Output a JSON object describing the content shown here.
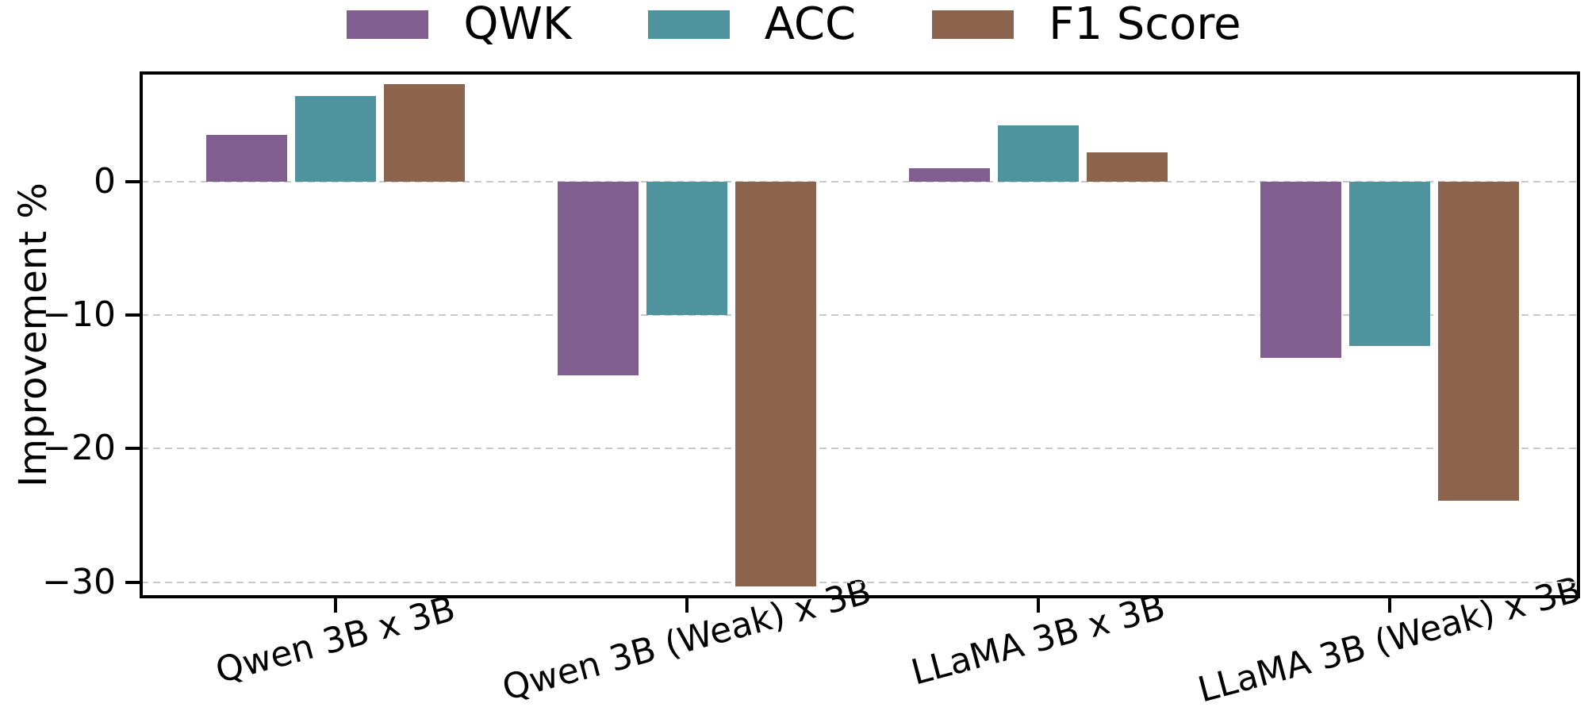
{
  "chart_data": {
    "type": "bar",
    "title": "",
    "xlabel": "",
    "ylabel": "Improvement %",
    "categories": [
      "Qwen 3B x 3B",
      "Qwen 3B (Weak) x 3B",
      "LLaMA 3B x 3B",
      "LLaMA 3B (Weak) x 3B"
    ],
    "series": [
      {
        "name": "QWK",
        "color": "#805f90",
        "values": [
          3.5,
          -14.5,
          1.0,
          -13.2
        ]
      },
      {
        "name": "ACC",
        "color": "#4f939e",
        "values": [
          6.4,
          -10.0,
          4.2,
          -12.3
        ]
      },
      {
        "name": "F1 Score",
        "color": "#8c634c",
        "values": [
          7.3,
          -30.3,
          2.2,
          -23.9
        ]
      }
    ],
    "yticks": [
      0,
      -10,
      -20,
      -30
    ],
    "ytick_labels": [
      "0",
      "−10",
      "−20",
      "−30"
    ],
    "ylim": [
      -31.1,
      8.15
    ],
    "grid": "horizontal dashed gridlines at y ticks",
    "legend_position": "top center, horizontal, no frame",
    "x_tick_label_rotation_deg": 15,
    "colors": {
      "grid": "#c9c9c9",
      "axis": "#000000",
      "background": "#ffffff"
    }
  }
}
